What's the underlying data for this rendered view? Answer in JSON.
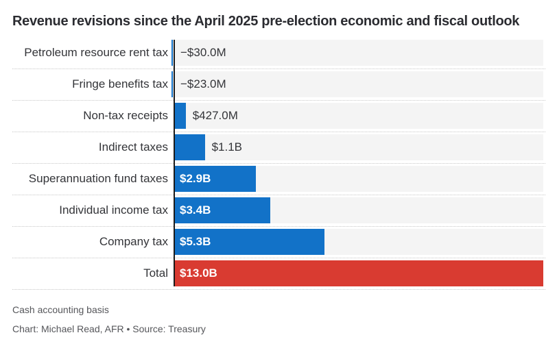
{
  "title": "Revenue revisions since the April 2025 pre-election economic and fiscal outlook",
  "footer": {
    "note": "Cash accounting basis",
    "credit": "Chart: Michael Read, AFR • Source: Treasury"
  },
  "colors": {
    "bar_blue": "#1272c8",
    "bar_red": "#d93b31",
    "track_gray": "#f4f4f4",
    "axis": "#1a1a1a"
  },
  "chart_data": {
    "type": "bar",
    "orientation": "horizontal",
    "title": "Revenue revisions since the April 2025 pre-election economic and fiscal outlook",
    "unit": "AUD, billions",
    "xlim": [
      0,
      13.0
    ],
    "grid": false,
    "legend": false,
    "categories": [
      "Petroleum resource rent tax",
      "Fringe benefits tax",
      "Non-tax receipts",
      "Indirect taxes",
      "Superannuation fund taxes",
      "Individual income tax",
      "Company tax",
      "Total"
    ],
    "values": [
      -0.03,
      -0.023,
      0.427,
      1.1,
      2.9,
      3.4,
      5.3,
      13.0
    ],
    "value_labels": [
      "−$30.0M",
      "−$23.0M",
      "$427.0M",
      "$1.1B",
      "$2.9B",
      "$3.4B",
      "$5.3B",
      "$13.0B"
    ],
    "bar_colors": [
      "blue",
      "blue",
      "blue",
      "blue",
      "blue",
      "blue",
      "blue",
      "red"
    ],
    "label_inside": [
      false,
      false,
      false,
      false,
      true,
      true,
      true,
      true
    ]
  }
}
